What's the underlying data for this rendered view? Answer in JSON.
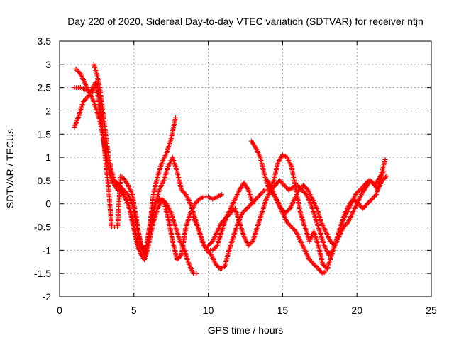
{
  "chart_data": {
    "type": "scatter",
    "title": "Day 220 of 2020, Sidereal Day-to-day VTEC variation (SDTVAR) for receiver ntjn",
    "xlabel": "GPS time / hours",
    "ylabel": "SDTVAR / TECUs",
    "xlim": [
      0,
      25
    ],
    "ylim": [
      -2,
      3.5
    ],
    "xticks": [
      "0",
      "5",
      "10",
      "15",
      "20",
      "25"
    ],
    "yticks": [
      "-2",
      "-1.5",
      "-1",
      "-0.5",
      "0",
      "0.5",
      "1",
      "1.5",
      "2",
      "2.5",
      "3",
      "3.5"
    ],
    "grid": true,
    "marker": "plus",
    "color": "#ff0000",
    "series": [
      {
        "x": [
          1.0,
          1.3,
          1.6,
          1.9,
          2.2,
          2.4,
          2.6,
          2.8,
          3.0,
          3.2,
          3.4,
          3.6,
          3.8,
          4.0,
          4.3,
          4.6,
          4.9,
          5.1,
          5.3,
          5.5,
          5.7,
          5.9,
          6.1,
          6.3,
          6.6,
          6.9,
          7.2,
          7.5,
          7.8
        ],
        "y": [
          1.65,
          1.9,
          2.2,
          2.3,
          2.5,
          2.6,
          2.3,
          1.8,
          1.3,
          0.9,
          0.6,
          0.5,
          0.45,
          0.35,
          0.2,
          0.0,
          -0.3,
          -0.6,
          -0.9,
          -1.1,
          -1.15,
          -0.9,
          -0.4,
          0.2,
          0.6,
          0.9,
          1.1,
          1.4,
          1.85
        ]
      },
      {
        "x": [
          1.0,
          1.4,
          1.8,
          2.2,
          2.5,
          2.7,
          2.9,
          3.1,
          3.3,
          3.5,
          3.7,
          3.9,
          4.1,
          4.3,
          4.6,
          4.9,
          5.1,
          5.3,
          5.5,
          5.7,
          5.9,
          6.1,
          6.4,
          6.7,
          7.0,
          7.3,
          7.6,
          7.9,
          8.2,
          8.5,
          8.8,
          9.1,
          9.4,
          9.7,
          10.0,
          10.3,
          10.6,
          10.9
        ],
        "y": [
          2.5,
          2.5,
          2.45,
          2.4,
          2.6,
          2.3,
          1.6,
          0.9,
          0.3,
          -0.5,
          -0.5,
          -0.5,
          0.6,
          0.55,
          0.4,
          0.2,
          -0.2,
          -0.6,
          -0.95,
          -1.1,
          -0.8,
          -0.4,
          0.0,
          0.1,
          0.05,
          -0.3,
          -0.8,
          -1.2,
          -1.1,
          -0.5,
          -0.2,
          0.0,
          0.1,
          0.15,
          0.15,
          0.1,
          0.15,
          0.2
        ]
      },
      {
        "x": [
          1.1,
          1.4,
          1.7,
          2.0,
          2.3,
          2.5,
          2.7,
          2.9,
          3.1,
          3.3,
          3.5,
          3.7,
          3.9,
          4.1,
          4.3,
          4.5,
          4.7,
          4.9,
          5.1,
          5.3,
          5.5,
          5.7,
          5.9,
          6.1,
          6.3,
          6.6,
          6.9,
          7.2,
          7.5,
          7.8,
          8.1,
          8.4,
          8.7,
          9.0,
          9.2
        ],
        "y": [
          2.9,
          2.8,
          2.6,
          2.4,
          2.2,
          2.0,
          1.8,
          1.5,
          1.1,
          0.8,
          0.5,
          0.4,
          0.3,
          0.3,
          0.2,
          0.1,
          -0.1,
          -0.4,
          -0.7,
          -0.95,
          -1.1,
          -1.2,
          -1.0,
          -0.7,
          -0.4,
          -0.1,
          0.1,
          0.0,
          -0.2,
          -0.5,
          -0.8,
          -1.0,
          -1.3,
          -1.5,
          -1.5
        ]
      },
      {
        "x": [
          2.3,
          2.5,
          2.7,
          2.9,
          3.1,
          3.3,
          3.5,
          3.7,
          4.0,
          4.3,
          4.6,
          4.9,
          5.2,
          5.5,
          5.8,
          6.1,
          6.4,
          6.7,
          7.0,
          7.3,
          7.6,
          7.9,
          8.2,
          8.5,
          8.8,
          9.1,
          9.4,
          9.7,
          10.0,
          10.3,
          10.6,
          10.9,
          11.2,
          11.5,
          11.8,
          12.1,
          12.4,
          12.7,
          13.0
        ],
        "y": [
          3.0,
          2.8,
          2.5,
          2.0,
          1.5,
          1.0,
          0.7,
          0.5,
          0.4,
          0.3,
          0.2,
          0.0,
          -0.5,
          -0.9,
          -1.0,
          -0.6,
          -0.1,
          0.3,
          0.5,
          0.8,
          1.0,
          0.7,
          0.3,
          0.2,
          0.0,
          -0.3,
          -0.6,
          -0.9,
          -1.0,
          -1.0,
          -0.9,
          -0.6,
          -0.3,
          -0.1,
          0.1,
          0.3,
          0.45,
          0.3,
          0.0
        ]
      },
      {
        "x": [
          9.0,
          9.3,
          9.6,
          9.9,
          10.2,
          10.5,
          10.8,
          11.1,
          11.4,
          11.7,
          12.0,
          12.3,
          12.6,
          12.9,
          13.2,
          13.5,
          13.8,
          14.1,
          14.4,
          14.7,
          15.0,
          15.3,
          15.6,
          15.9,
          16.2,
          16.5,
          16.8,
          17.1,
          17.4,
          17.7,
          17.9
        ],
        "y": [
          -0.3,
          -0.5,
          -0.8,
          -1.0,
          -1.1,
          -1.3,
          -1.4,
          -1.35,
          -1.0,
          -0.7,
          -0.4,
          -0.2,
          -0.1,
          0.0,
          0.1,
          0.2,
          0.3,
          0.3,
          0.2,
          0.0,
          -0.2,
          -0.4,
          -0.5,
          -0.6,
          -0.8,
          -1.0,
          -1.2,
          -1.3,
          -1.4,
          -1.5,
          -1.45
        ]
      },
      {
        "x": [
          12.9,
          13.2,
          13.5,
          13.8,
          14.1,
          14.4,
          14.7,
          15.0,
          15.3,
          15.6,
          15.9,
          16.2,
          16.5,
          16.8,
          17.1,
          17.4,
          17.7,
          18.0,
          18.3,
          18.6,
          18.9,
          19.2,
          19.5,
          19.8,
          20.1,
          20.4,
          20.7,
          21.0,
          21.3,
          21.6,
          21.9
        ],
        "y": [
          1.35,
          1.2,
          1.0,
          0.6,
          0.3,
          0.5,
          0.9,
          1.05,
          1.0,
          0.8,
          0.3,
          -0.2,
          -0.5,
          -0.8,
          -0.6,
          -0.9,
          -1.3,
          -1.4,
          -1.1,
          -0.8,
          -0.5,
          -0.2,
          0.0,
          0.1,
          0.0,
          -0.1,
          0.0,
          0.1,
          0.2,
          0.6,
          0.95
        ]
      },
      {
        "x": [
          10.0,
          10.3,
          10.6,
          10.9,
          11.2,
          11.5,
          11.8,
          12.1,
          12.4,
          12.7,
          13.0,
          13.3,
          13.6,
          13.9,
          14.2,
          14.5,
          14.8,
          15.1,
          15.4,
          15.7,
          16.0,
          16.3,
          16.6,
          16.9,
          17.2,
          17.5,
          17.8,
          18.1,
          18.4,
          18.7,
          19.0,
          19.3,
          19.6,
          19.9,
          20.2,
          20.5,
          20.8,
          21.1,
          21.4,
          21.7,
          22.0
        ],
        "y": [
          -0.9,
          -0.8,
          -0.6,
          -0.4,
          -0.3,
          -0.2,
          -0.1,
          -0.4,
          -0.7,
          -0.9,
          -0.8,
          -0.5,
          -0.2,
          0.1,
          0.3,
          0.4,
          0.5,
          0.4,
          0.3,
          0.35,
          0.4,
          0.3,
          0.2,
          0.0,
          -0.3,
          -0.6,
          -0.9,
          -1.1,
          -1.0,
          -0.7,
          -0.4,
          -0.2,
          0.0,
          0.2,
          0.3,
          0.4,
          0.5,
          0.45,
          0.3,
          0.5,
          0.6
        ]
      },
      {
        "x": [
          14.0,
          14.3,
          14.6,
          14.9,
          15.2,
          15.5,
          15.8,
          16.1,
          16.4,
          16.7,
          17.0,
          17.3,
          17.6,
          17.9,
          18.2,
          18.5,
          18.8,
          19.1,
          19.4,
          19.7,
          20.0,
          20.3,
          20.6,
          20.9,
          21.2,
          21.5,
          21.8
        ],
        "y": [
          0.5,
          0.3,
          0.1,
          -0.1,
          -0.2,
          -0.1,
          0.1,
          0.3,
          0.4,
          0.3,
          0.1,
          -0.1,
          -0.4,
          -0.6,
          -0.8,
          -0.9,
          -0.7,
          -0.5,
          -0.4,
          -0.2,
          0.0,
          0.2,
          0.35,
          0.5,
          0.4,
          0.55,
          0.7
        ]
      }
    ]
  }
}
